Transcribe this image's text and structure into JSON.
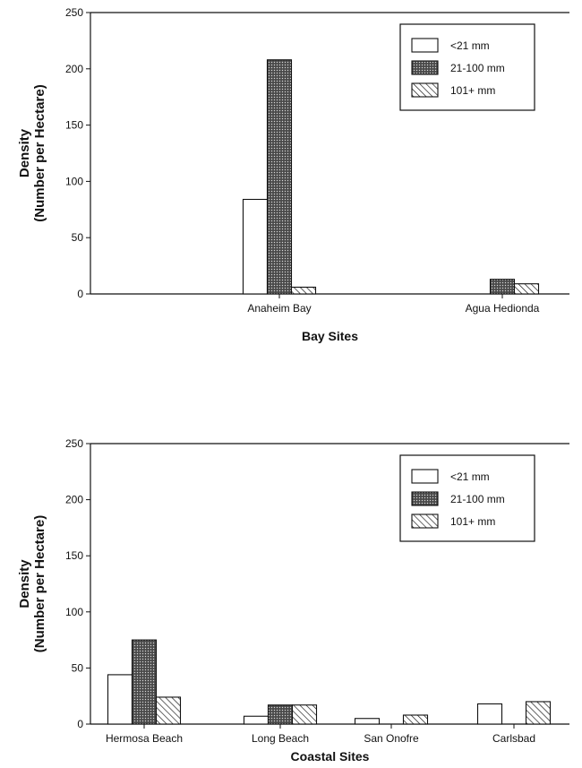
{
  "chart_data": [
    {
      "type": "bar",
      "xlabel": "Bay Sites",
      "ylabel_line1": "Density",
      "ylabel_line2": "(Number per Hectare)",
      "ylim": [
        0,
        250
      ],
      "yticks": [
        0,
        50,
        100,
        150,
        200,
        250
      ],
      "grid": false,
      "legend_position": "top-right",
      "categories": [
        "Anaheim Bay",
        "Agua Hedionda"
      ],
      "series": [
        {
          "name": "<21 mm",
          "fill": "open",
          "values": [
            84,
            0
          ]
        },
        {
          "name": "21-100 mm",
          "fill": "stippled",
          "values": [
            208,
            13
          ]
        },
        {
          "name": "101+ mm",
          "fill": "hatched",
          "values": [
            6,
            9
          ]
        }
      ]
    },
    {
      "type": "bar",
      "xlabel": "Coastal Sites",
      "ylabel_line1": "Density",
      "ylabel_line2": "(Number per Hectare)",
      "ylim": [
        0,
        250
      ],
      "yticks": [
        0,
        50,
        100,
        150,
        200,
        250
      ],
      "grid": false,
      "legend_position": "top-right",
      "categories": [
        "Hermosa Beach",
        "Long Beach",
        "San Onofre",
        "Carlsbad"
      ],
      "series": [
        {
          "name": "<21 mm",
          "fill": "open",
          "values": [
            44,
            7,
            5,
            18
          ]
        },
        {
          "name": "21-100 mm",
          "fill": "stippled",
          "values": [
            75,
            17,
            0,
            0
          ]
        },
        {
          "name": "101+ mm",
          "fill": "hatched",
          "values": [
            24,
            17,
            8,
            20
          ]
        }
      ]
    }
  ],
  "colors": {
    "ink": "#111111",
    "stipple_bg": "#5a5a5a",
    "background": "#ffffff"
  }
}
